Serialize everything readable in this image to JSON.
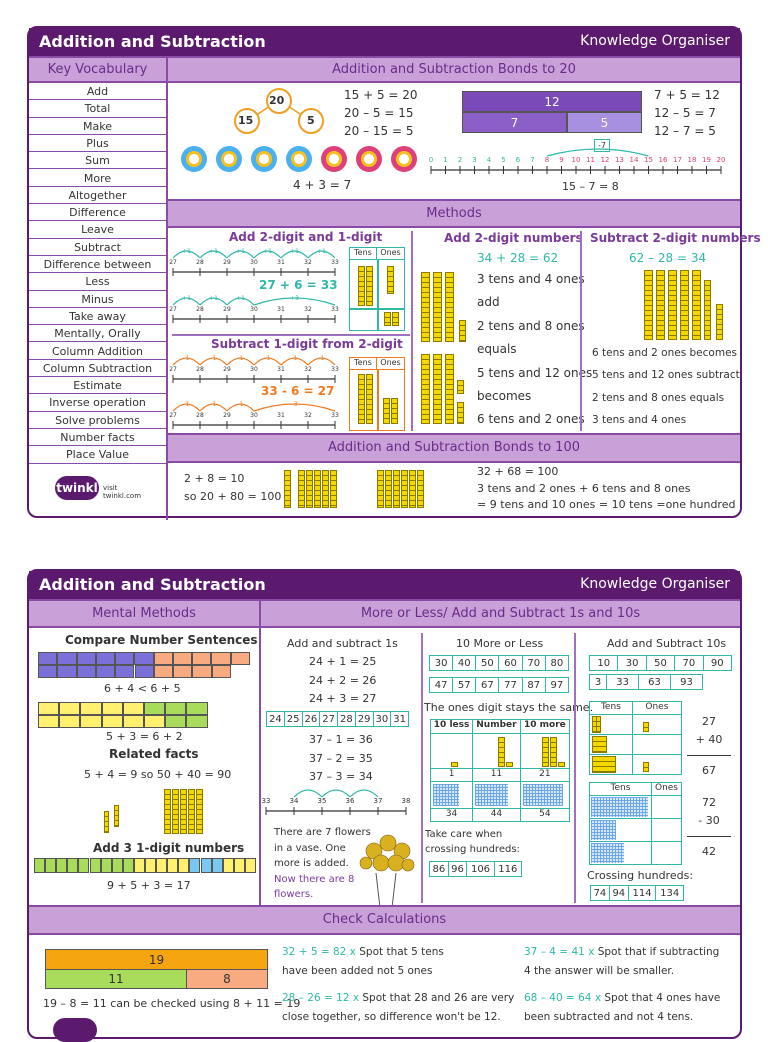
{
  "colors": {
    "header": "#5c1a6e",
    "section": "#c9a0d8",
    "teal": "#2fb8a8",
    "orange": "#f07a20",
    "purple": "#7a3a9a",
    "bar_top": "#f5a510",
    "bar_green": "#a8dc5a",
    "bar_salmon": "#f8aa80",
    "bond_dark": "#7a4ab8",
    "bond_light": "#9a80d8"
  },
  "top": {
    "title": "Addition and Subtraction",
    "subtitle": "Knowledge Organiser",
    "vocab_title": "Key Vocabulary",
    "vocab": [
      "Add",
      "Total",
      "Make",
      "Plus",
      "Sum",
      "More",
      "Altogether",
      "Difference",
      "Leave",
      "Subtract",
      "Difference between",
      "Less",
      "Minus",
      "Take away",
      "Mentally, Orally",
      "Column Addition",
      "Column Subtraction",
      "Estimate",
      "Inverse operation",
      "Solve problems",
      "Number facts",
      "Place Value"
    ],
    "logo": {
      "brand": "twinkl",
      "url_text": "visit twinkl.com"
    },
    "bonds20": {
      "title": "Addition and Subtraction Bonds to 20",
      "whole": "20",
      "part1": "15",
      "part2": "5",
      "facts1": [
        "15 + 5 = 20",
        "20 – 5 = 15",
        "20 – 15 = 5"
      ],
      "flowers_eq": "4 + 3 = 7",
      "flowers_blue": 4,
      "flowers_pink": 3,
      "bar_whole": "12",
      "bar_parts": [
        "7",
        "5"
      ],
      "facts2": [
        "7 + 5 = 12",
        "12 – 5 = 7",
        "12 – 7 = 5"
      ],
      "jump_label": "-7",
      "numline": [
        "0",
        "1",
        "2",
        "3",
        "4",
        "5",
        "6",
        "7",
        "8",
        "9",
        "10",
        "11",
        "12",
        "13",
        "14",
        "15",
        "16",
        "17",
        "18",
        "19",
        "20"
      ],
      "numline_eq": "15 – 7 = 8"
    },
    "methods": {
      "title": "Methods",
      "add1": {
        "title": "Add 2-digit and 1-digit",
        "ticks": [
          "27",
          "28",
          "29",
          "30",
          "31",
          "32",
          "33"
        ],
        "jump": "+1",
        "jump3": "+3",
        "eq": "27 + 6 = 33",
        "tens": "Tens",
        "ones": "Ones"
      },
      "sub1": {
        "title": "Subtract 1-digit from 2-digit",
        "ticks": [
          "27",
          "28",
          "29",
          "30",
          "31",
          "32",
          "33"
        ],
        "jump": "-1",
        "jump3": "-3",
        "eq": "33 - 6 = 27",
        "tens": "Tens",
        "ones": "Ones"
      },
      "add2": {
        "title": "Add 2-digit numbers",
        "eq": "34 + 28 = 62",
        "lines": [
          "3 tens and 4 ones",
          "add",
          "2 tens and 8 ones",
          "equals",
          "5 tens and 12 ones",
          "becomes",
          "6 tens and 2 ones"
        ]
      },
      "sub2": {
        "title": "Subtract 2-digit numbers",
        "eq": "62 – 28 = 34",
        "lines": [
          "6 tens and 2 ones becomes",
          "5 tens and 12 ones subtract",
          "2 tens and 8 ones equals",
          "3 tens and 4 ones"
        ]
      }
    },
    "bonds100": {
      "title": "Addition and Subtraction Bonds to 100",
      "left": [
        "2 + 8 = 10",
        "so 20 + 80 = 100"
      ],
      "right": [
        "32 + 68 = 100",
        "3 tens and 2 ones + 6 tens and 8 ones",
        "= 9 tens and 10 ones = 10 tens =one hundred"
      ]
    }
  },
  "bottom": {
    "title": "Addition and Subtraction",
    "subtitle": "Knowledge Organiser",
    "mental": {
      "title": "Mental Methods",
      "compare_title": "Compare Number Sentences",
      "eq1": "6 + 4 < 6 + 5",
      "eq2": "5 + 3 = 6 + 2",
      "related_title": "Related facts",
      "related": "5 + 4 = 9 so 50 + 40 = 90",
      "add3_title": "Add 3 1-digit numbers",
      "add3_eq": "9 + 5 + 3 = 17"
    },
    "more_less": {
      "title": "More or Less/ Add and Subtract 1s and 10s",
      "ones": {
        "title": "Add and subtract 1s",
        "add": [
          "24 + 1 = 25",
          "24 + 2 = 26",
          "24 + 3 = 27"
        ],
        "strip": [
          "24",
          "25",
          "26",
          "27",
          "28",
          "29",
          "30",
          "31"
        ],
        "sub": [
          "37 – 1 = 36",
          "37 – 2 = 35",
          "37 – 3 = 34"
        ],
        "ticks": [
          "33",
          "34",
          "35",
          "36",
          "37",
          "38"
        ],
        "story": [
          "There are 7 flowers",
          "in a vase. One",
          "more is added."
        ],
        "story_answer": [
          "Now there are 8",
          "flowers."
        ]
      },
      "ten": {
        "title": "10 More or Less",
        "row1": [
          "30",
          "40",
          "50",
          "60",
          "70",
          "80"
        ],
        "row2": [
          "47",
          "57",
          "67",
          "77",
          "87",
          "97"
        ],
        "note": "The ones digit stays the same.",
        "headers": [
          "10 less",
          "Number",
          "10 more"
        ],
        "vals1": [
          "1",
          "11",
          "21"
        ],
        "vals2": [
          "34",
          "44",
          "54"
        ],
        "care": [
          "Take care when",
          "crossing hundreds:"
        ],
        "row3": [
          "86",
          "96",
          "106",
          "116"
        ]
      },
      "tens": {
        "title": "Add and Subtract 10s",
        "row1": [
          "10",
          "30",
          "50",
          "70",
          "90"
        ],
        "row2": [
          "3",
          "33",
          "63",
          "93"
        ],
        "headers": [
          "Tens",
          "Ones"
        ],
        "col_add": [
          "27",
          "+ 40",
          "67"
        ],
        "col_sub": [
          "72",
          "- 30",
          "42"
        ],
        "crossing": "Crossing hundreds:",
        "row3": [
          "74",
          "94",
          "114",
          "134"
        ]
      }
    },
    "check": {
      "title": "Check Calculations",
      "bar_whole": "19",
      "bar_parts": [
        "11",
        "8"
      ],
      "bar_note": "19 – 8 = 11 can be checked using 8 + 11 = 19",
      "items": [
        {
          "eq": "32 + 5 = 82 x",
          "text1": "Spot that 5 tens",
          "text2": "have been added not 5 ones"
        },
        {
          "eq": "28 – 26 = 12 x",
          "text1": "Spot that 28 and 26 are very",
          "text2": "close together, so difference won't be 12."
        },
        {
          "eq": "37 – 4 = 41 x",
          "text1": "Spot that if subtracting",
          "text2": "4 the answer will be smaller."
        },
        {
          "eq": "68 – 40 = 64 x",
          "text1": "Spot that 4 ones have",
          "text2": "been subtracted and not 4 tens."
        }
      ]
    }
  }
}
